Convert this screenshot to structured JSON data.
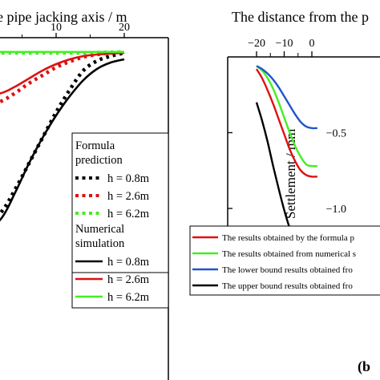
{
  "chart_data": [
    {
      "type": "line",
      "panel": "left (cropped)",
      "xlabel": "e pipe jacking axis / m",
      "x_ticks": [
        "10",
        "20"
      ],
      "ylabel": "",
      "legend_groups": [
        {
          "title": [
            "Formula",
            "prediction"
          ],
          "style": "dotted",
          "entries": [
            "h = 0.8m",
            "h = 2.6m",
            "h = 6.2m"
          ]
        },
        {
          "title": [
            "Numerical",
            "simulation"
          ],
          "style": "solid",
          "entries": [
            "h = 0.8m",
            "h = 2.6m",
            "h = 6.2m"
          ]
        }
      ],
      "colors": {
        "h08": "#000000",
        "h26": "#dd1111",
        "h62": "#44ee22"
      },
      "series": [
        {
          "name": "h = 0.8m",
          "group": "Formula prediction",
          "style": "dotted",
          "color": "#000000",
          "x": [
            -1,
            2,
            4,
            6,
            8,
            10,
            12,
            14,
            16,
            18,
            20
          ],
          "y": [
            5.6,
            5.0,
            4.3,
            3.5,
            2.7,
            1.9,
            1.2,
            0.6,
            0.3,
            0.15,
            0.05
          ]
        },
        {
          "name": "h = 2.6m",
          "group": "Formula prediction",
          "style": "dotted",
          "color": "#dd1111",
          "x": [
            -1,
            2,
            4,
            6,
            8,
            10,
            12,
            14,
            16,
            18,
            20
          ],
          "y": [
            1.8,
            1.55,
            1.3,
            1.0,
            0.75,
            0.5,
            0.32,
            0.18,
            0.1,
            0.05,
            0.02
          ]
        },
        {
          "name": "h = 6.2m",
          "group": "Formula prediction",
          "style": "dotted",
          "color": "#44ee22",
          "x": [
            -1,
            2,
            4,
            6,
            8,
            10,
            12,
            14,
            16,
            18,
            20
          ],
          "y": [
            0.05,
            0.05,
            0.05,
            0.05,
            0.05,
            0.05,
            0.05,
            0.05,
            0.04,
            0.03,
            0.02
          ]
        },
        {
          "name": "h = 0.8m",
          "group": "Numerical simulation",
          "style": "solid",
          "color": "#000000",
          "x": [
            -1,
            2,
            4,
            6,
            8,
            10,
            12,
            14,
            16,
            18,
            20
          ],
          "y": [
            5.8,
            5.2,
            4.4,
            3.5,
            2.7,
            2.0,
            1.4,
            0.9,
            0.55,
            0.35,
            0.25
          ]
        },
        {
          "name": "h = 2.6m",
          "group": "Numerical simulation",
          "style": "solid",
          "color": "#dd1111",
          "x": [
            -1,
            2,
            4,
            6,
            8,
            10,
            12,
            14,
            16,
            18,
            20
          ],
          "y": [
            1.4,
            1.3,
            1.1,
            0.85,
            0.6,
            0.4,
            0.25,
            0.15,
            0.1,
            0.07,
            0.05
          ]
        },
        {
          "name": "h = 6.2m",
          "group": "Numerical simulation",
          "style": "solid",
          "color": "#44ee22",
          "x": [
            -1,
            2,
            4,
            6,
            8,
            10,
            12,
            14,
            16,
            18,
            20
          ],
          "y": [
            0.02,
            0.02,
            0.02,
            0.02,
            0.02,
            0.02,
            0.02,
            0.02,
            0.02,
            0.02,
            0.02
          ]
        }
      ]
    },
    {
      "type": "line",
      "panel": "b",
      "panel_label": "(b",
      "xlabel": "The distance from the p",
      "ylabel": "Settlement / mm",
      "x_ticks": [
        "−20",
        "−10",
        "0"
      ],
      "y_ticks": [
        "−0.5",
        "−1.0"
      ],
      "xlim": [
        -25,
        2
      ],
      "ylim": [
        -1.5,
        0
      ],
      "legend": [
        "The results obtained by the formula p",
        "The results obtained from numerical s",
        "The lower bound results obtained fro",
        "The upper bound results obtained fro"
      ],
      "series": [
        {
          "name": "The results obtained by the formula p",
          "color": "#dd1111",
          "x": [
            -20,
            -18,
            -16,
            -14,
            -12,
            -10,
            -8,
            -6,
            -4,
            -2,
            0
          ],
          "y": [
            -0.08,
            -0.14,
            -0.22,
            -0.31,
            -0.41,
            -0.51,
            -0.61,
            -0.69,
            -0.75,
            -0.78,
            -0.79
          ]
        },
        {
          "name": "The results obtained from numerical s",
          "color": "#44ee22",
          "x": [
            -20,
            -18,
            -16,
            -14,
            -12,
            -10,
            -8,
            -6,
            -4,
            -2,
            0
          ],
          "y": [
            -0.06,
            -0.09,
            -0.14,
            -0.21,
            -0.3,
            -0.4,
            -0.5,
            -0.59,
            -0.66,
            -0.71,
            -0.72
          ]
        },
        {
          "name": "The lower bound results obtained fro",
          "color": "#2255cc",
          "x": [
            -20,
            -18,
            -16,
            -14,
            -12,
            -10,
            -8,
            -6,
            -4,
            -2,
            0
          ],
          "y": [
            -0.06,
            -0.08,
            -0.11,
            -0.15,
            -0.2,
            -0.26,
            -0.32,
            -0.38,
            -0.43,
            -0.46,
            -0.47
          ]
        },
        {
          "name": "The upper bound results obtained fro",
          "color": "#000000",
          "x": [
            -20,
            -18,
            -16,
            -14,
            -12,
            -10,
            -8,
            -6,
            -4,
            -2,
            0
          ],
          "y": [
            -0.3,
            -0.42,
            -0.56,
            -0.72,
            -0.87,
            -1.01,
            -1.13,
            -1.22,
            -1.28,
            -1.31,
            -1.32
          ]
        }
      ]
    }
  ]
}
